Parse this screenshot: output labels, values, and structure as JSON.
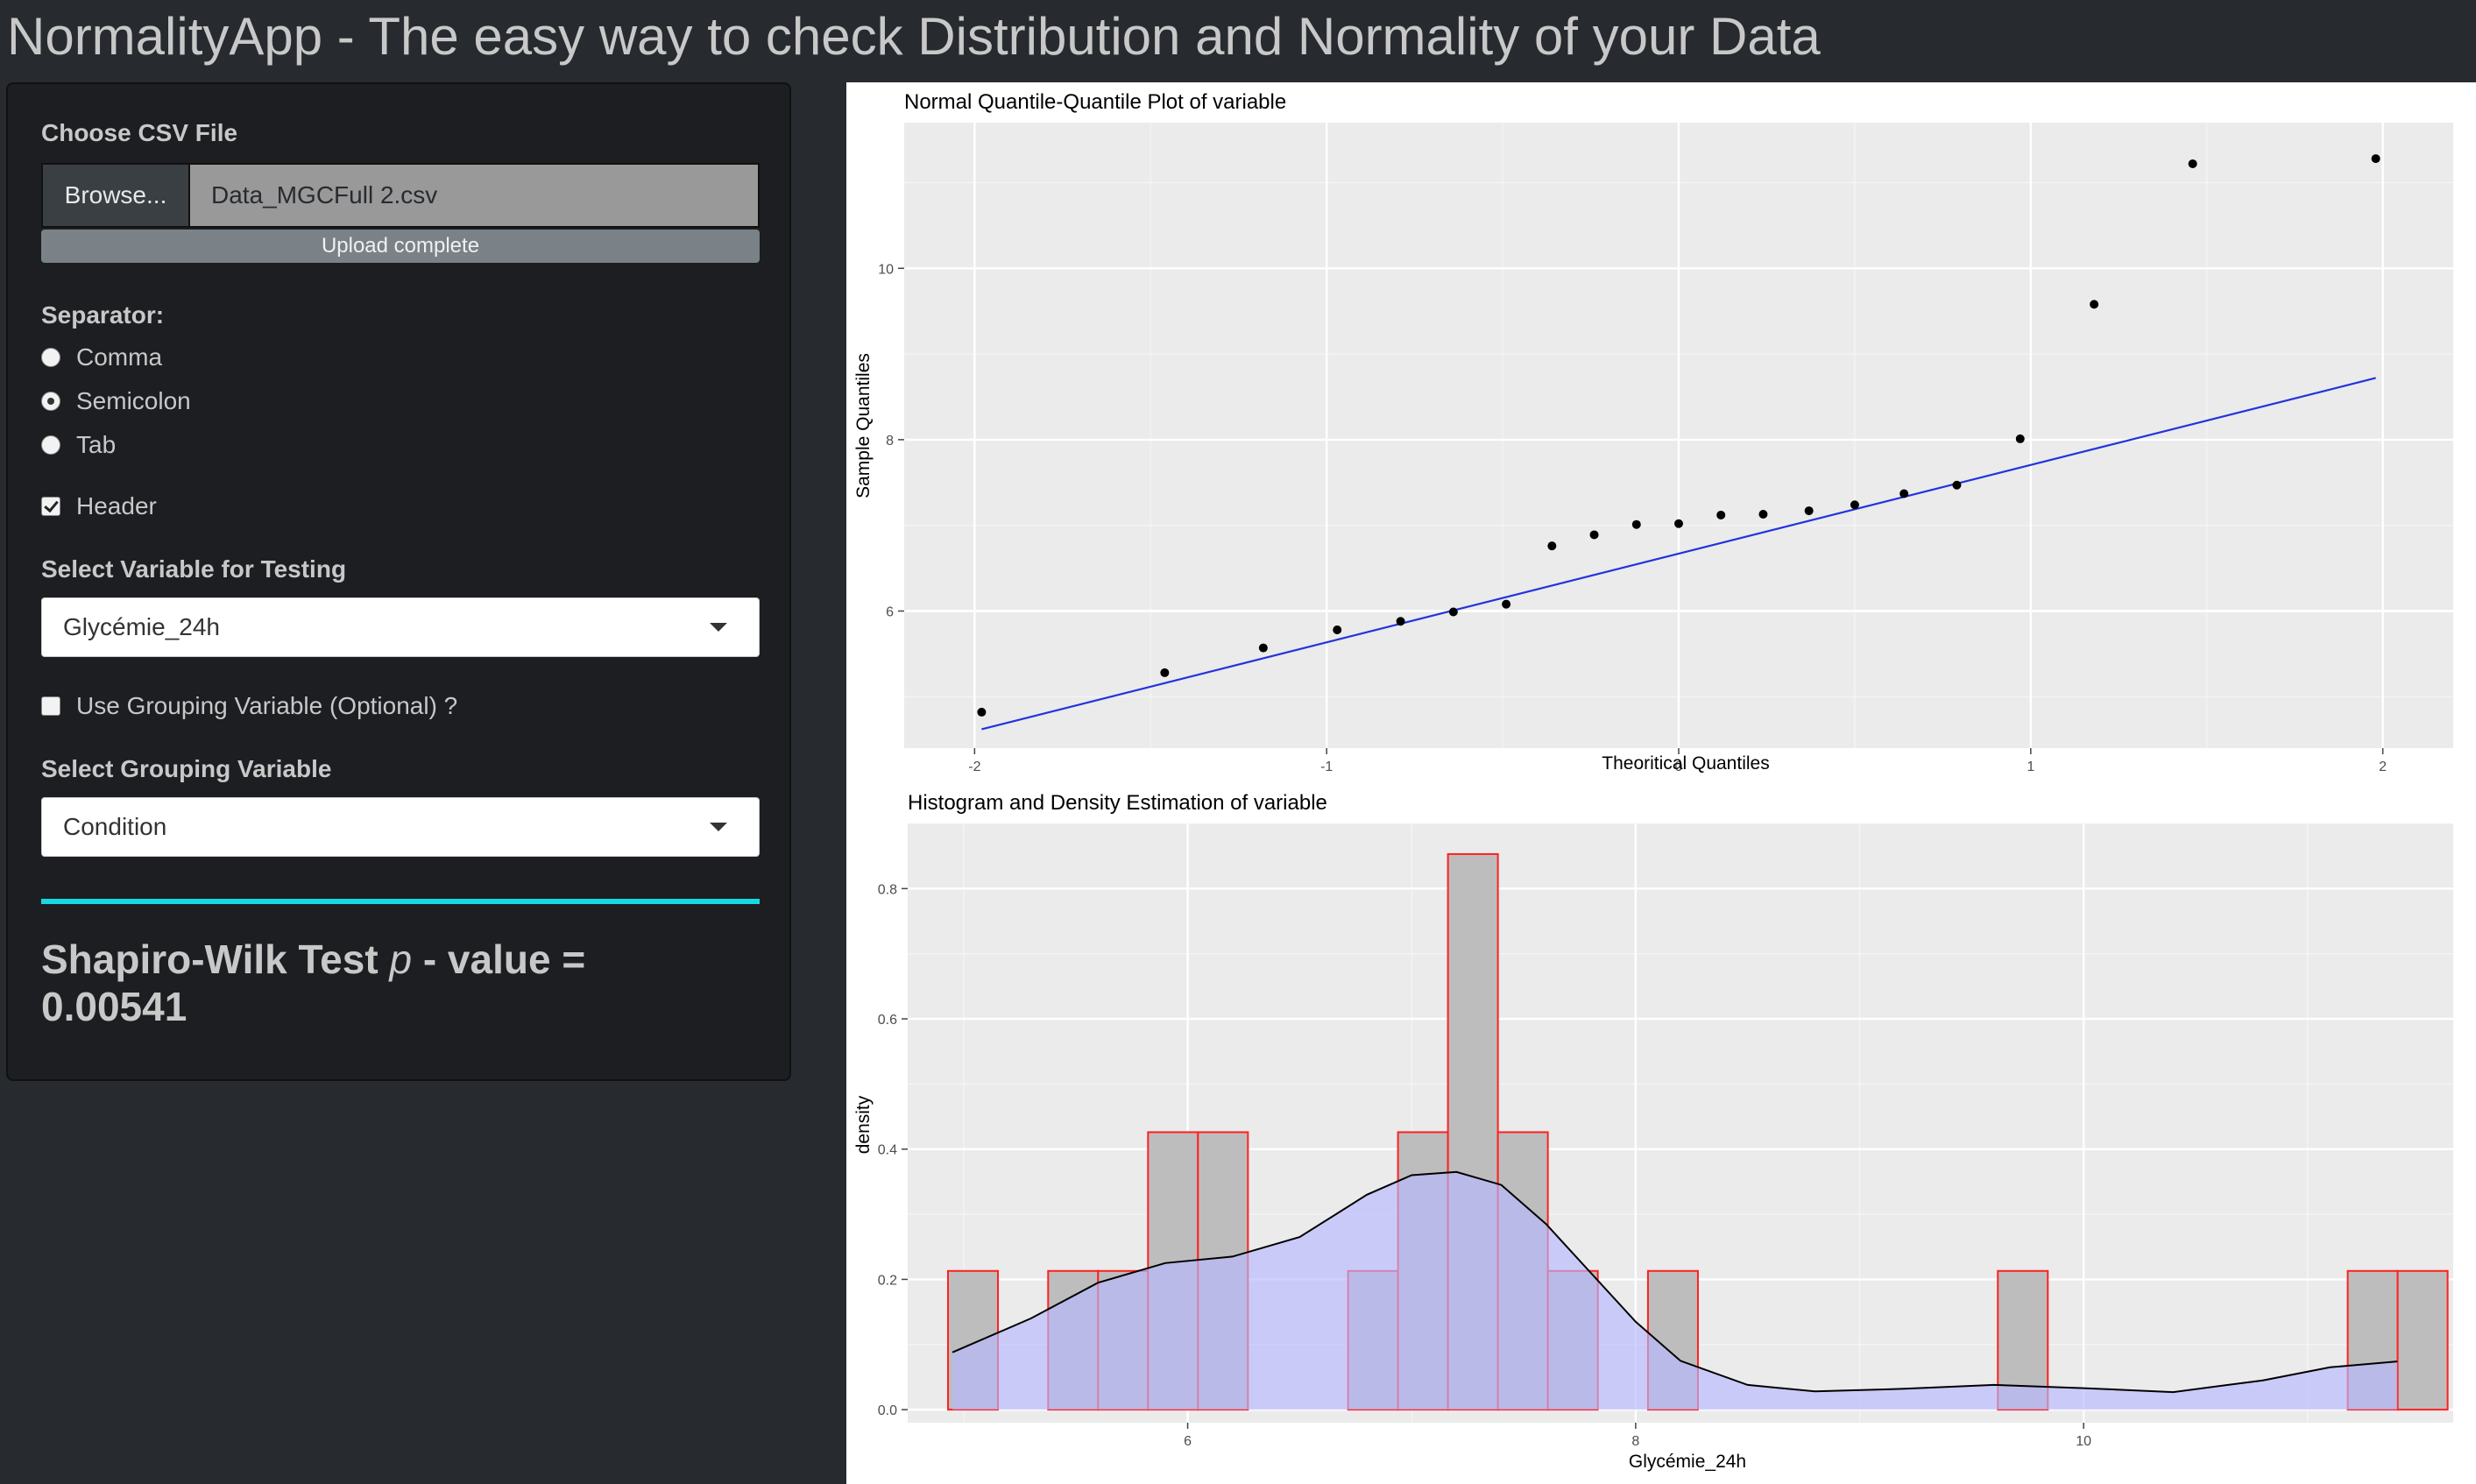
{
  "app": {
    "title": "NormalityApp - The easy way to check Distribution and Normality of your Data"
  },
  "sidebar": {
    "file": {
      "label": "Choose CSV File",
      "browse_label": "Browse...",
      "file_name": "Data_MGCFull 2.csv",
      "status": "Upload complete"
    },
    "separator": {
      "label": "Separator:",
      "options": [
        {
          "label": "Comma",
          "selected": false
        },
        {
          "label": "Semicolon",
          "selected": true
        },
        {
          "label": "Tab",
          "selected": false
        }
      ]
    },
    "header": {
      "label": "Header",
      "checked": true
    },
    "variable": {
      "label": "Select Variable for Testing",
      "value": "Glycémie_24h"
    },
    "use_grouping": {
      "label": "Use Grouping Variable (Optional) ?",
      "checked": false
    },
    "grouping": {
      "label": "Select Grouping Variable",
      "value": "Condition"
    },
    "result": {
      "prefix": "Shapiro-Wilk Test ",
      "p": "p",
      "suffix": " - value =",
      "value": "0.00541"
    },
    "colors": {
      "accent_rule": "#17d8e0",
      "background": "#272b30",
      "panel": "#1c1e22"
    }
  },
  "chart_data": [
    {
      "type": "scatter",
      "title": "Normal Quantile-Quantile Plot of variable",
      "xlabel": "Theoritical Quantiles",
      "ylabel": "Sample Quantiles",
      "xlim": [
        -2.2,
        2.2
      ],
      "ylim": [
        4.4,
        11.7
      ],
      "xticks": [
        -2,
        -1,
        0,
        1,
        2
      ],
      "yticks": [
        6,
        8,
        10
      ],
      "points": [
        {
          "x": -1.98,
          "y": 4.82
        },
        {
          "x": -1.46,
          "y": 5.28
        },
        {
          "x": -1.18,
          "y": 5.57
        },
        {
          "x": -0.97,
          "y": 5.78
        },
        {
          "x": -0.79,
          "y": 5.88
        },
        {
          "x": -0.64,
          "y": 5.99
        },
        {
          "x": -0.49,
          "y": 6.08
        },
        {
          "x": -0.36,
          "y": 6.76
        },
        {
          "x": -0.24,
          "y": 6.89
        },
        {
          "x": -0.12,
          "y": 7.01
        },
        {
          "x": 0.0,
          "y": 7.02
        },
        {
          "x": 0.12,
          "y": 7.12
        },
        {
          "x": 0.24,
          "y": 7.13
        },
        {
          "x": 0.37,
          "y": 7.17
        },
        {
          "x": 0.5,
          "y": 7.24
        },
        {
          "x": 0.64,
          "y": 7.37
        },
        {
          "x": 0.79,
          "y": 7.47
        },
        {
          "x": 0.97,
          "y": 8.01
        },
        {
          "x": 1.18,
          "y": 9.58
        },
        {
          "x": 1.46,
          "y": 11.22
        },
        {
          "x": 1.98,
          "y": 11.28
        }
      ],
      "line": {
        "x": [
          -1.98,
          1.98
        ],
        "y": [
          4.62,
          8.72
        ],
        "color": "#2233dd"
      },
      "grid": true
    },
    {
      "type": "bar",
      "title": "Histogram and Density Estimation of variable",
      "xlabel": "Glycémie_24h",
      "ylabel": "density",
      "xlim": [
        4.75,
        11.65
      ],
      "ylim": [
        -0.02,
        0.9
      ],
      "xticks": [
        6,
        8,
        10
      ],
      "yticks": [
        0.0,
        0.2,
        0.4,
        0.6,
        0.8
      ],
      "bin_width": 0.223,
      "bins": [
        {
          "x0": 4.93,
          "density": 0.213
        },
        {
          "x0": 5.377,
          "density": 0.213
        },
        {
          "x0": 5.6,
          "density": 0.213
        },
        {
          "x0": 5.823,
          "density": 0.426
        },
        {
          "x0": 6.046,
          "density": 0.426
        },
        {
          "x0": 6.716,
          "density": 0.213
        },
        {
          "x0": 6.939,
          "density": 0.426
        },
        {
          "x0": 7.162,
          "density": 0.853
        },
        {
          "x0": 7.385,
          "density": 0.426
        },
        {
          "x0": 7.608,
          "density": 0.213
        },
        {
          "x0": 8.055,
          "density": 0.213
        },
        {
          "x0": 9.617,
          "density": 0.213
        },
        {
          "x0": 11.179,
          "density": 0.213
        },
        {
          "x0": 11.402,
          "density": 0.213
        }
      ],
      "density_curve": {
        "x": [
          4.95,
          5.3,
          5.6,
          5.9,
          6.2,
          6.5,
          6.8,
          7.0,
          7.2,
          7.4,
          7.6,
          7.8,
          8.0,
          8.2,
          8.5,
          8.8,
          9.2,
          9.6,
          10.0,
          10.4,
          10.8,
          11.1,
          11.4
        ],
        "y": [
          0.088,
          0.14,
          0.195,
          0.225,
          0.235,
          0.265,
          0.33,
          0.36,
          0.365,
          0.345,
          0.285,
          0.21,
          0.135,
          0.075,
          0.038,
          0.028,
          0.032,
          0.038,
          0.033,
          0.027,
          0.045,
          0.065,
          0.074
        ]
      },
      "colors": {
        "bar_fill": "#bdbdbd",
        "bar_stroke": "#ff2020",
        "density_fill": "#b9b9ff",
        "density_line": "#000000"
      },
      "grid": true
    }
  ]
}
